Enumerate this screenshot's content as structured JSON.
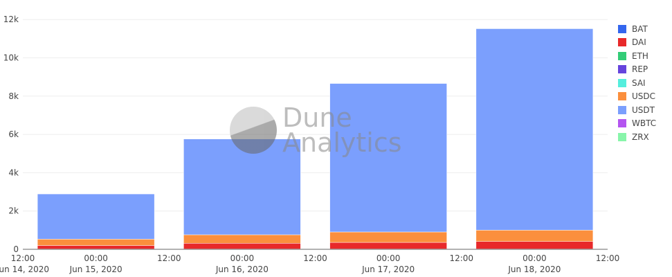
{
  "chart_data": {
    "type": "bar",
    "stacked": true,
    "categories": [
      "Jun 15, 2020",
      "Jun 16, 2020",
      "Jun 17, 2020",
      "Jun 18, 2020"
    ],
    "x_ticks": [
      {
        "time": "12:00",
        "date": "Jun 14, 2020"
      },
      {
        "time": "00:00",
        "date": "Jun 15, 2020"
      },
      {
        "time": "12:00",
        "date": ""
      },
      {
        "time": "00:00",
        "date": "Jun 16, 2020"
      },
      {
        "time": "12:00",
        "date": ""
      },
      {
        "time": "00:00",
        "date": "Jun 17, 2020"
      },
      {
        "time": "12:00",
        "date": ""
      },
      {
        "time": "00:00",
        "date": "Jun 18, 2020"
      },
      {
        "time": "12:00",
        "date": ""
      }
    ],
    "y_ticks": [
      "0",
      "2k",
      "4k",
      "6k",
      "8k",
      "10k",
      "12k"
    ],
    "ylim": [
      0,
      12500
    ],
    "grid": true,
    "legend_position": "right",
    "series": [
      {
        "name": "BAT",
        "color": "#3366ee",
        "values": [
          0,
          0,
          0,
          0
        ]
      },
      {
        "name": "DAI",
        "color": "#e8292a",
        "values": [
          200,
          315,
          360,
          410
        ]
      },
      {
        "name": "ETH",
        "color": "#33cc77",
        "values": [
          0,
          0,
          0,
          0
        ]
      },
      {
        "name": "REP",
        "color": "#6644dd",
        "values": [
          0,
          0,
          0,
          0
        ]
      },
      {
        "name": "SAI",
        "color": "#55eedd",
        "values": [
          0,
          0,
          0,
          0
        ]
      },
      {
        "name": "USDC",
        "color": "#fb8f3d",
        "values": [
          330,
          445,
          545,
          590
        ]
      },
      {
        "name": "USDT",
        "color": "#7b9ffd",
        "values": [
          2360,
          5000,
          7755,
          10520
        ]
      },
      {
        "name": "WBTC",
        "color": "#b455f0",
        "values": [
          0,
          0,
          0,
          0
        ]
      },
      {
        "name": "ZRX",
        "color": "#88f5aa",
        "values": [
          0,
          0,
          0,
          0
        ]
      }
    ]
  },
  "watermark": {
    "line1": "Dune",
    "line2": "Analytics"
  }
}
